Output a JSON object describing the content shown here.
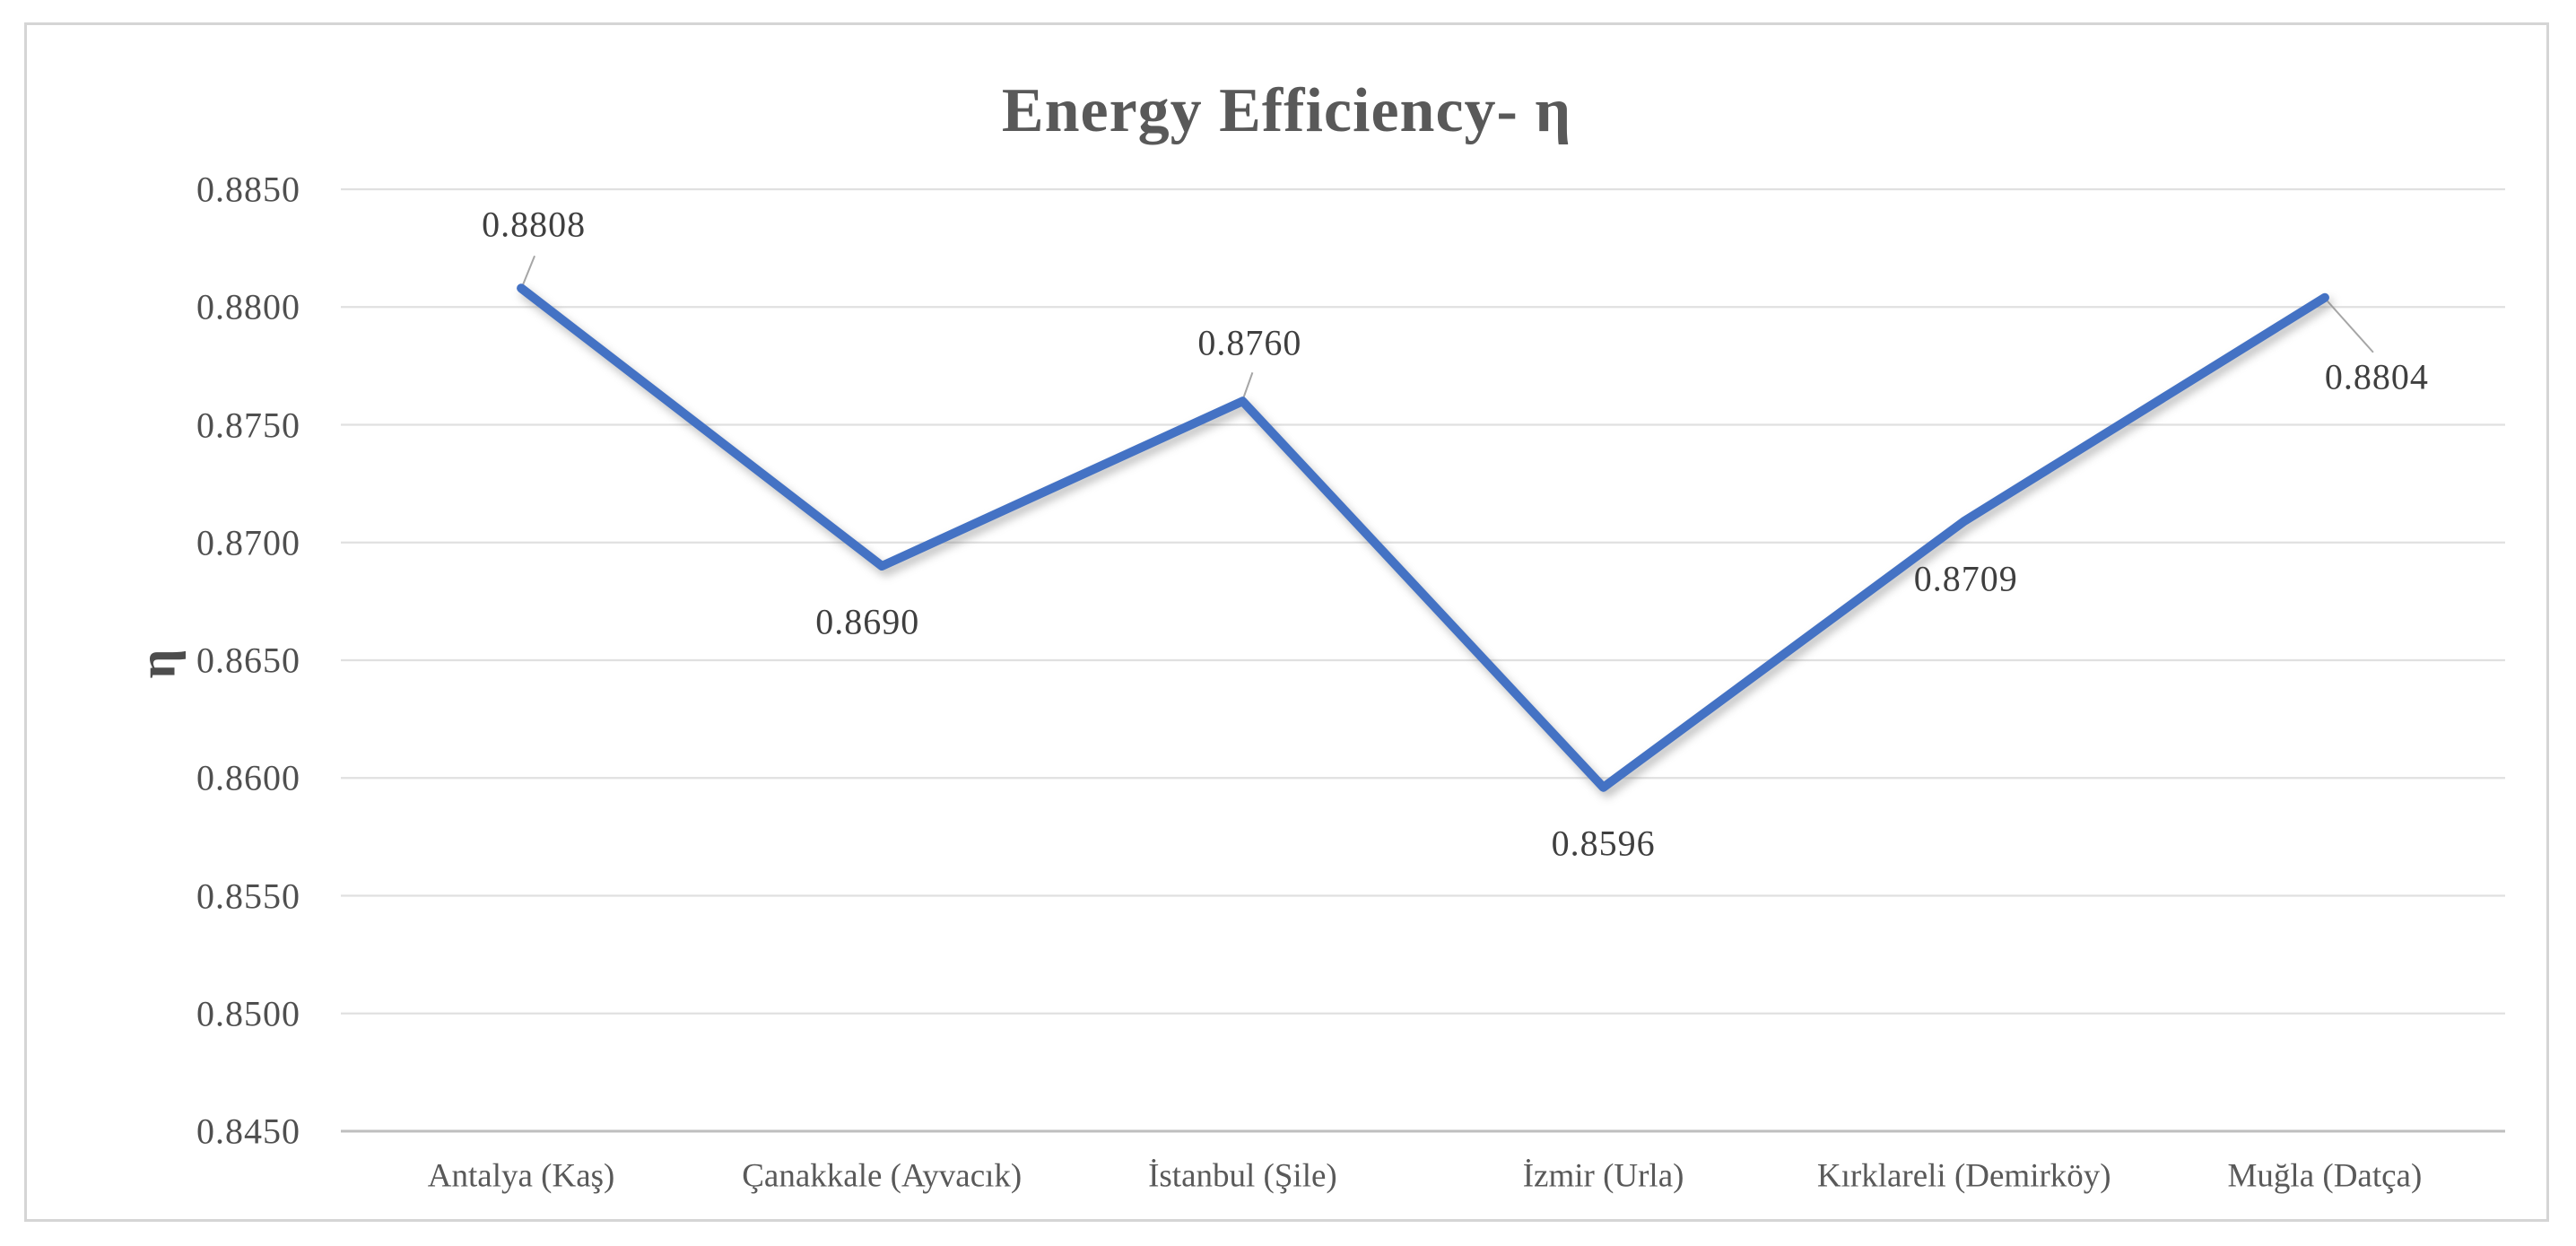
{
  "chart_data": {
    "type": "line",
    "title": "Energy Efficiency- η",
    "xlabel": "",
    "ylabel": "η",
    "categories": [
      "Antalya (Kaş)",
      "Çanakkale (Ayvacık)",
      "İstanbul (Şile)",
      "İzmir (Urla)",
      "Kırklareli (Demirköy)",
      "Muğla (Datça)"
    ],
    "values": [
      0.8808,
      0.869,
      0.876,
      0.8596,
      0.8709,
      0.8804
    ],
    "point_labels": [
      "0.8808",
      "0.8690",
      "0.8760",
      "0.8596",
      "0.8709",
      "0.8804"
    ],
    "ylim": [
      0.845,
      0.885
    ],
    "ytick_step": 0.005,
    "ytick_labels": [
      "0.8850",
      "0.8800",
      "0.8750",
      "0.8700",
      "0.8650",
      "0.8600",
      "0.8550",
      "0.8500",
      "0.8450"
    ],
    "grid": true,
    "legend": false,
    "colors": {
      "line": "#4472c4",
      "gridline": "#e0e0e0",
      "axis_line": "#bfbfbf",
      "leader_line": "#a6a6a6",
      "title_text": "#595959",
      "tick_text": "#4f4f4f",
      "data_label_text": "#3f3f3f",
      "frame_border": "#d5d5d5",
      "background": "#ffffff"
    }
  }
}
